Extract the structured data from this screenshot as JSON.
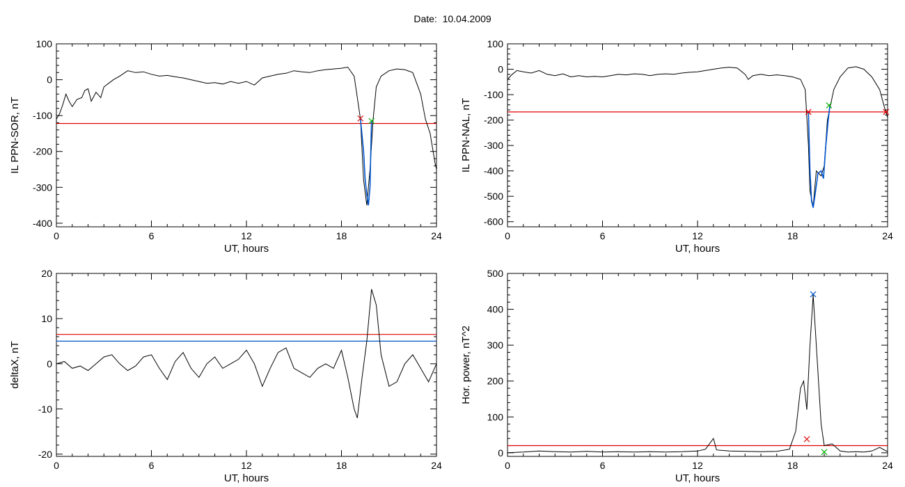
{
  "header": {
    "date_label": "Date:",
    "date_value": "10.04.2009"
  },
  "colors": {
    "trace": "#000000",
    "threshold": "#e00000",
    "marker_red": "#e00000",
    "marker_green": "#00b000",
    "highlight": "#0055cc"
  },
  "chart_data": [
    {
      "id": "ppn-sor",
      "type": "line",
      "title": "",
      "xlabel": "UT, hours",
      "ylabel": "IL PPN-SOR, nT",
      "xlim": [
        0,
        24
      ],
      "ylim": [
        -410,
        100
      ],
      "xticks": [
        0,
        6,
        12,
        18,
        24
      ],
      "yticks": [
        -400,
        -300,
        -200,
        -100,
        0,
        100
      ],
      "series": [
        {
          "values_xy": [
            [
              0,
              -110
            ],
            [
              0.2,
              -95
            ],
            [
              0.4,
              -70
            ],
            [
              0.6,
              -40
            ],
            [
              0.8,
              -60
            ],
            [
              1.0,
              -75
            ],
            [
              1.3,
              -55
            ],
            [
              1.6,
              -50
            ],
            [
              1.8,
              -30
            ],
            [
              2.0,
              -25
            ],
            [
              2.2,
              -60
            ],
            [
              2.5,
              -35
            ],
            [
              2.8,
              -50
            ],
            [
              3.0,
              -20
            ],
            [
              3.3,
              -10
            ],
            [
              3.6,
              0
            ],
            [
              4.0,
              10
            ],
            [
              4.5,
              25
            ],
            [
              5,
              20
            ],
            [
              5.5,
              22
            ],
            [
              6,
              15
            ],
            [
              6.5,
              10
            ],
            [
              7,
              12
            ],
            [
              7.5,
              8
            ],
            [
              8,
              5
            ],
            [
              8.5,
              0
            ],
            [
              9,
              -5
            ],
            [
              9.5,
              -10
            ],
            [
              10,
              -8
            ],
            [
              10.5,
              -12
            ],
            [
              11,
              -5
            ],
            [
              11.5,
              -10
            ],
            [
              12,
              -5
            ],
            [
              12.5,
              -15
            ],
            [
              13,
              5
            ],
            [
              13.5,
              10
            ],
            [
              14,
              15
            ],
            [
              14.5,
              18
            ],
            [
              15,
              25
            ],
            [
              15.5,
              22
            ],
            [
              16,
              20
            ],
            [
              16.5,
              25
            ],
            [
              17,
              28
            ],
            [
              17.5,
              30
            ],
            [
              18,
              32
            ],
            [
              18.4,
              35
            ],
            [
              18.8,
              10
            ],
            [
              19,
              -50
            ],
            [
              19.2,
              -110
            ],
            [
              19.4,
              -280
            ],
            [
              19.6,
              -350
            ],
            [
              19.8,
              -250
            ],
            [
              20.0,
              -110
            ],
            [
              20.2,
              -20
            ],
            [
              20.5,
              10
            ],
            [
              21,
              25
            ],
            [
              21.5,
              30
            ],
            [
              22,
              28
            ],
            [
              22.5,
              20
            ],
            [
              23,
              -40
            ],
            [
              23.3,
              -110
            ],
            [
              23.6,
              -150
            ],
            [
              23.9,
              -230
            ],
            [
              24,
              -250
            ]
          ]
        }
      ],
      "threshold": -122,
      "threshold_color": "#e00000",
      "highlight_segment": [
        [
          19.2,
          -110
        ],
        [
          19.4,
          -200
        ],
        [
          19.5,
          -280
        ],
        [
          19.6,
          -320
        ],
        [
          19.7,
          -350
        ],
        [
          19.8,
          -300
        ],
        [
          19.85,
          -200
        ],
        [
          19.9,
          -115
        ]
      ],
      "markers": [
        {
          "x": 19.2,
          "y": -108,
          "color": "#e00000"
        },
        {
          "x": 19.9,
          "y": -115,
          "color": "#00b000"
        }
      ]
    },
    {
      "id": "ppn-nal",
      "type": "line",
      "title": "",
      "xlabel": "UT, hours",
      "ylabel": "IL PPN-NAL, nT",
      "xlim": [
        0,
        24
      ],
      "ylim": [
        -620,
        100
      ],
      "xticks": [
        0,
        6,
        12,
        18,
        24
      ],
      "yticks": [
        -600,
        -500,
        -400,
        -300,
        -200,
        -100,
        0,
        100
      ],
      "series": [
        {
          "values_xy": [
            [
              0,
              -40
            ],
            [
              0.3,
              -20
            ],
            [
              0.6,
              -5
            ],
            [
              1,
              -10
            ],
            [
              1.5,
              -15
            ],
            [
              2,
              -5
            ],
            [
              2.5,
              -20
            ],
            [
              3,
              -25
            ],
            [
              3.5,
              -18
            ],
            [
              4,
              -30
            ],
            [
              4.5,
              -25
            ],
            [
              5,
              -30
            ],
            [
              5.5,
              -28
            ],
            [
              6,
              -30
            ],
            [
              6.5,
              -25
            ],
            [
              7,
              -20
            ],
            [
              7.5,
              -22
            ],
            [
              8,
              -18
            ],
            [
              8.5,
              -20
            ],
            [
              9,
              -25
            ],
            [
              9.5,
              -20
            ],
            [
              10,
              -18
            ],
            [
              10.5,
              -20
            ],
            [
              11,
              -15
            ],
            [
              11.5,
              -12
            ],
            [
              12,
              -10
            ],
            [
              12.5,
              -5
            ],
            [
              13,
              0
            ],
            [
              13.5,
              5
            ],
            [
              14,
              8
            ],
            [
              14.5,
              5
            ],
            [
              15,
              -20
            ],
            [
              15.2,
              -40
            ],
            [
              15.5,
              -25
            ],
            [
              16,
              -20
            ],
            [
              16.5,
              -25
            ],
            [
              17,
              -22
            ],
            [
              17.5,
              -25
            ],
            [
              18,
              -30
            ],
            [
              18.5,
              -40
            ],
            [
              18.8,
              -80
            ],
            [
              19,
              -300
            ],
            [
              19.1,
              -480
            ],
            [
              19.3,
              -540
            ],
            [
              19.5,
              -400
            ],
            [
              19.8,
              -420
            ],
            [
              20,
              -380
            ],
            [
              20.2,
              -200
            ],
            [
              20.4,
              -140
            ],
            [
              20.6,
              -80
            ],
            [
              21,
              -30
            ],
            [
              21.5,
              5
            ],
            [
              22,
              10
            ],
            [
              22.5,
              0
            ],
            [
              23,
              -30
            ],
            [
              23.5,
              -80
            ],
            [
              23.8,
              -150
            ],
            [
              24,
              -190
            ]
          ]
        }
      ],
      "threshold": -168,
      "threshold_color": "#e00000",
      "highlight_segment": [
        [
          19.0,
          -170
        ],
        [
          19.1,
          -400
        ],
        [
          19.2,
          -520
        ],
        [
          19.3,
          -545
        ],
        [
          19.45,
          -480
        ],
        [
          19.6,
          -410
        ],
        [
          19.8,
          -400
        ],
        [
          19.95,
          -430
        ],
        [
          20.1,
          -300
        ],
        [
          20.25,
          -200
        ],
        [
          20.35,
          -145
        ]
      ],
      "markers": [
        {
          "x": 19.0,
          "y": -168,
          "color": "#e00000"
        },
        {
          "x": 20.3,
          "y": -142,
          "color": "#00b000"
        },
        {
          "x": 23.9,
          "y": -168,
          "color": "#e00000"
        }
      ]
    },
    {
      "id": "deltax",
      "type": "line",
      "title": "",
      "xlabel": "UT, hours",
      "ylabel": "deltaX, nT",
      "xlim": [
        0,
        24
      ],
      "ylim": [
        -20.5,
        20
      ],
      "xticks": [
        0,
        6,
        12,
        18,
        24
      ],
      "yticks": [
        -20,
        -10,
        0,
        10,
        20
      ],
      "series": [
        {
          "values_xy": [
            [
              0,
              0
            ],
            [
              0.5,
              0.5
            ],
            [
              1,
              -1
            ],
            [
              1.5,
              -0.5
            ],
            [
              2,
              -1.5
            ],
            [
              2.5,
              0
            ],
            [
              3,
              1.5
            ],
            [
              3.5,
              2
            ],
            [
              4,
              0
            ],
            [
              4.5,
              -1.5
            ],
            [
              5,
              -0.5
            ],
            [
              5.5,
              1.5
            ],
            [
              6,
              2
            ],
            [
              6.5,
              -1
            ],
            [
              7,
              -3.5
            ],
            [
              7.5,
              0.5
            ],
            [
              8,
              2.5
            ],
            [
              8.5,
              -1
            ],
            [
              9,
              -3
            ],
            [
              9.5,
              0
            ],
            [
              10,
              1.5
            ],
            [
              10.5,
              -1
            ],
            [
              11,
              0
            ],
            [
              11.5,
              1
            ],
            [
              12,
              3
            ],
            [
              12.5,
              0
            ],
            [
              13,
              -5
            ],
            [
              13.5,
              -1
            ],
            [
              14,
              2.5
            ],
            [
              14.5,
              3.5
            ],
            [
              15,
              -1
            ],
            [
              15.5,
              -2
            ],
            [
              16,
              -3
            ],
            [
              16.5,
              -1
            ],
            [
              17,
              0
            ],
            [
              17.5,
              -1
            ],
            [
              18,
              3
            ],
            [
              18.4,
              -3
            ],
            [
              18.8,
              -10
            ],
            [
              19,
              -12
            ],
            [
              19.3,
              -3
            ],
            [
              19.6,
              5
            ],
            [
              19.9,
              16.5
            ],
            [
              20.2,
              13
            ],
            [
              20.5,
              2
            ],
            [
              21,
              -5
            ],
            [
              21.5,
              -4
            ],
            [
              22,
              0
            ],
            [
              22.5,
              2
            ],
            [
              23,
              -1
            ],
            [
              23.5,
              -4
            ],
            [
              24,
              0
            ]
          ]
        }
      ],
      "threshold": 6.5,
      "threshold_color": "#e00000",
      "secondary_level": 5.0,
      "secondary_level_color": "#0055cc"
    },
    {
      "id": "hor-power",
      "type": "line",
      "title": "",
      "xlabel": "UT, hours",
      "ylabel": "Hor. power, nT^2",
      "xlim": [
        0,
        24
      ],
      "ylim": [
        -10,
        500
      ],
      "xticks": [
        0,
        6,
        12,
        18,
        24
      ],
      "yticks": [
        0,
        100,
        200,
        300,
        400,
        500
      ],
      "series": [
        {
          "values_xy": [
            [
              0,
              0
            ],
            [
              1,
              2
            ],
            [
              2,
              5
            ],
            [
              3,
              3
            ],
            [
              4,
              2
            ],
            [
              5,
              4
            ],
            [
              6,
              2
            ],
            [
              7,
              3
            ],
            [
              8,
              2
            ],
            [
              9,
              3
            ],
            [
              10,
              2
            ],
            [
              11,
              3
            ],
            [
              12,
              5
            ],
            [
              12.5,
              10
            ],
            [
              13,
              40
            ],
            [
              13.2,
              8
            ],
            [
              14,
              5
            ],
            [
              15,
              4
            ],
            [
              16,
              3
            ],
            [
              17,
              4
            ],
            [
              17.8,
              10
            ],
            [
              18.2,
              60
            ],
            [
              18.5,
              180
            ],
            [
              18.7,
              200
            ],
            [
              18.9,
              120
            ],
            [
              19.1,
              300
            ],
            [
              19.3,
              440
            ],
            [
              19.5,
              300
            ],
            [
              19.8,
              80
            ],
            [
              20,
              20
            ],
            [
              20.5,
              25
            ],
            [
              21,
              5
            ],
            [
              21.5,
              2
            ],
            [
              22,
              3
            ],
            [
              22.5,
              2
            ],
            [
              23,
              5
            ],
            [
              23.5,
              15
            ],
            [
              24,
              3
            ]
          ]
        }
      ],
      "threshold": 20,
      "threshold_color": "#e00000",
      "markers": [
        {
          "x": 18.9,
          "y": 38,
          "color": "#e00000"
        },
        {
          "x": 19.3,
          "y": 442,
          "color": "#0055cc"
        },
        {
          "x": 20.0,
          "y": 2,
          "color": "#00b000"
        }
      ]
    }
  ]
}
